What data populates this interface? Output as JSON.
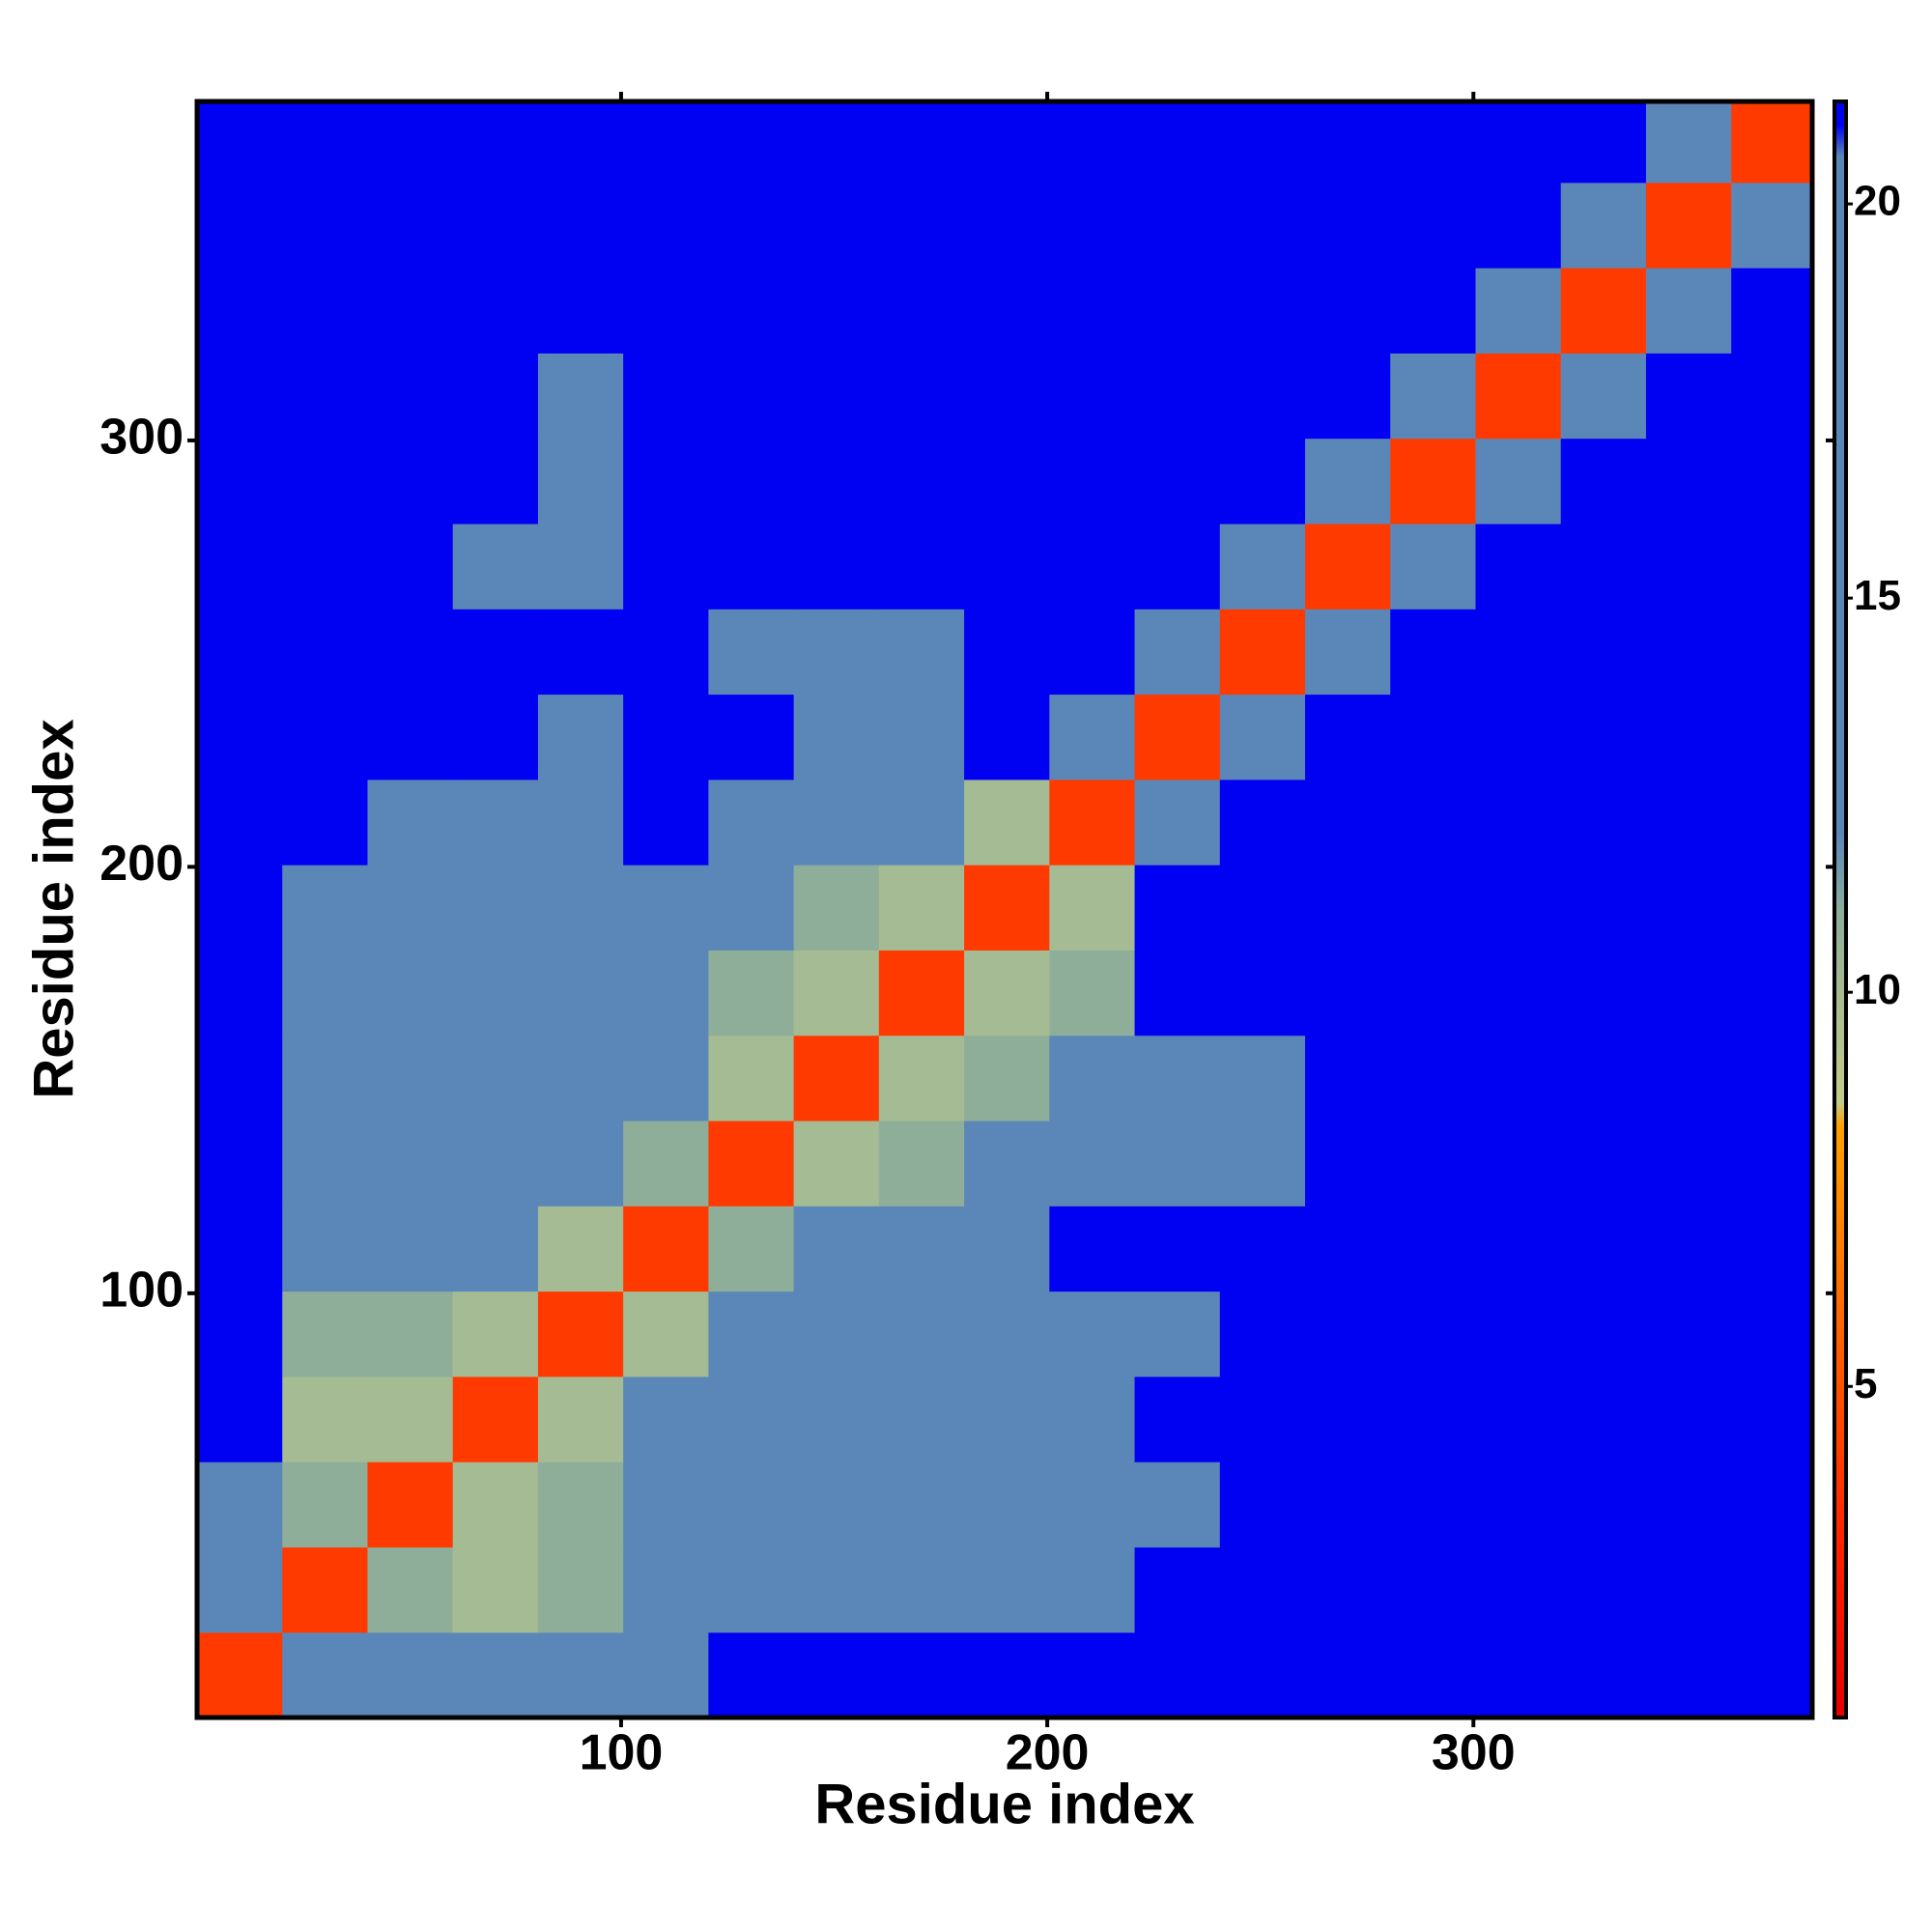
{
  "chart_data": {
    "type": "heatmap",
    "xlabel": "Residue index",
    "ylabel": "Residue index",
    "x": [
      10.5,
      30.5,
      50.5,
      70.5,
      90.5,
      110.5,
      130.5,
      150.5,
      170.5,
      190.5,
      210.5,
      230.5,
      250.5,
      270.5,
      290.5,
      310.5,
      330.5,
      350.5,
      370.5
    ],
    "y": [
      10.5,
      30.5,
      50.5,
      70.5,
      90.5,
      110.5,
      130.5,
      150.5,
      170.5,
      190.5,
      210.5,
      230.5,
      250.5,
      270.5,
      290.5,
      310.5,
      330.5,
      350.5,
      370.5
    ],
    "z": [
      [
        4,
        12,
        20,
        20,
        20,
        20,
        21.3,
        21.3,
        21.3,
        21.3,
        21.3,
        21.3,
        21.3,
        21.3,
        21.3,
        21.3,
        21.3,
        21.3,
        21.3
      ],
      [
        12,
        4,
        11,
        10,
        11,
        12,
        16,
        17,
        17,
        18,
        19,
        21.3,
        21.3,
        21.3,
        21.3,
        21.3,
        21.3,
        21.3,
        21.3
      ],
      [
        16,
        11,
        4,
        10,
        11,
        12,
        15,
        15,
        15,
        16,
        18,
        20,
        21.3,
        21.3,
        21.3,
        21.3,
        21.3,
        21.3,
        21.3
      ],
      [
        21.3,
        10,
        10,
        4,
        10,
        12,
        15,
        15,
        16,
        16,
        18,
        21.3,
        21.3,
        21.3,
        21.3,
        21.3,
        21.3,
        21.3,
        21.3
      ],
      [
        21.3,
        11,
        11,
        10,
        4,
        10,
        16,
        15,
        15,
        16,
        17,
        20,
        21.3,
        21.3,
        21.3,
        21.3,
        21.3,
        21.3,
        21.3
      ],
      [
        21.3,
        12,
        12,
        12,
        10,
        4,
        11,
        19,
        18,
        19,
        21.3,
        21.3,
        21.3,
        21.3,
        21.3,
        21.3,
        21.3,
        21.3,
        21.3
      ],
      [
        21.3,
        18,
        16,
        17,
        17,
        11,
        4,
        10,
        11,
        12,
        14,
        19,
        20,
        21.3,
        21.3,
        21.3,
        21.3,
        21.3,
        21.3
      ],
      [
        21.3,
        16,
        15,
        16,
        16,
        15,
        10,
        4,
        10,
        11,
        12,
        19,
        19,
        21.3,
        21.3,
        21.3,
        21.3,
        21.3,
        21.3
      ],
      [
        21.3,
        17,
        15,
        16,
        16,
        16,
        11,
        10,
        4,
        10,
        11,
        21.3,
        21.3,
        21.3,
        21.3,
        21.3,
        21.3,
        21.3,
        21.3
      ],
      [
        21.3,
        18,
        16,
        16,
        16,
        15,
        12,
        11,
        10,
        4,
        10,
        21.3,
        21.3,
        21.3,
        21.3,
        21.3,
        21.3,
        21.3,
        21.3
      ],
      [
        21.3,
        21.3,
        18,
        17,
        18,
        21.3,
        13,
        17,
        14,
        10,
        4,
        12,
        21.3,
        21.3,
        21.3,
        21.3,
        21.3,
        21.3,
        21.3
      ],
      [
        21.3,
        21.3,
        21.3,
        21.3,
        20,
        21.3,
        21.3,
        19,
        19,
        21.3,
        12,
        4,
        12,
        21.3,
        21.3,
        21.3,
        21.3,
        21.3,
        21.3
      ],
      [
        21.3,
        21.3,
        21.3,
        21.3,
        21.3,
        21.3,
        19,
        19,
        20,
        21.3,
        21.3,
        12,
        4,
        12,
        21.3,
        21.3,
        21.3,
        21.3,
        21.3
      ],
      [
        21.3,
        21.3,
        21.3,
        20,
        20,
        21.3,
        21.3,
        21.3,
        21.3,
        21.3,
        21.3,
        21.3,
        12,
        4,
        12,
        21.3,
        21.3,
        21.3,
        21.3
      ],
      [
        21.3,
        21.3,
        21.3,
        21.3,
        20,
        21.3,
        21.3,
        21.3,
        21.3,
        21.3,
        21.3,
        21.3,
        21.3,
        12,
        4,
        12,
        21.3,
        21.3,
        21.3
      ],
      [
        21.3,
        21.3,
        21.3,
        21.3,
        20,
        21.3,
        21.3,
        21.3,
        21.3,
        21.3,
        21.3,
        21.3,
        21.3,
        21.3,
        12,
        4,
        12,
        21.3,
        21.3
      ],
      [
        21.3,
        21.3,
        21.3,
        21.3,
        21.3,
        21.3,
        21.3,
        21.3,
        21.3,
        21.3,
        21.3,
        21.3,
        21.3,
        21.3,
        21.3,
        12,
        4,
        12,
        21.3
      ],
      [
        21.3,
        21.3,
        21.3,
        21.3,
        21.3,
        21.3,
        21.3,
        21.3,
        21.3,
        21.3,
        21.3,
        21.3,
        21.3,
        21.3,
        21.3,
        21.3,
        12,
        4,
        12
      ],
      [
        21.3,
        21.3,
        21.3,
        21.3,
        21.3,
        21.3,
        21.3,
        21.3,
        21.3,
        21.3,
        21.3,
        21.3,
        21.3,
        21.3,
        21.3,
        21.3,
        21.3,
        12,
        4
      ]
    ],
    "xlim": [
      0.5,
      379.5
    ],
    "ylim": [
      0.5,
      379.5
    ],
    "xticks": [
      100,
      200,
      300
    ],
    "yticks": [
      100,
      200,
      300
    ],
    "zlim": [
      0.8,
      21.3
    ],
    "colorbar_ticks": [
      5,
      10,
      15,
      20
    ],
    "colorscale": [
      {
        "value": 0.8,
        "color": "#e60000"
      },
      {
        "value": 3,
        "color": "#ff2200"
      },
      {
        "value": 6,
        "color": "#ff6a00"
      },
      {
        "value": 8.3,
        "color": "#ffa000"
      },
      {
        "value": 8.6,
        "color": "#c4cc88"
      },
      {
        "value": 11,
        "color": "#8fae9a"
      },
      {
        "value": 12,
        "color": "#5b87b8"
      },
      {
        "value": 20.6,
        "color": "#5b87b8"
      },
      {
        "value": 21,
        "color": "#0000f2"
      },
      {
        "value": 21.3,
        "color": "#0000f2"
      }
    ]
  }
}
